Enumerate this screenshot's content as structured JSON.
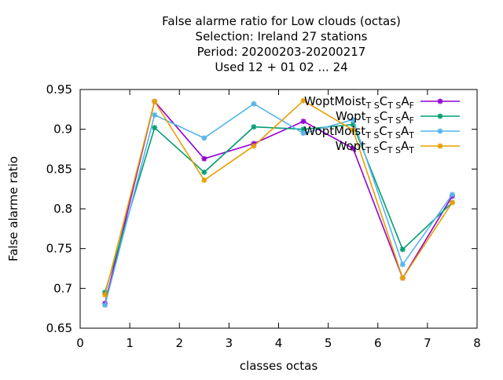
{
  "chart_data": {
    "type": "line",
    "title_lines": [
      "False alarme ratio  for Low clouds (octas)",
      "Selection: Ireland     27 stations",
      "Period: 20200203-20200217",
      "Used  12 + 01 02 ... 24"
    ],
    "xlabel": "classes octas",
    "ylabel": "False alarme ratio",
    "xlim": [
      0,
      8
    ],
    "ylim": [
      0.65,
      0.95
    ],
    "xticks": [
      "0",
      "1",
      "2",
      "3",
      "4",
      "5",
      "6",
      "7",
      "8"
    ],
    "yticks": [
      "0.65",
      "0.7",
      "0.75",
      "0.8",
      "0.85",
      "0.9",
      "0.95"
    ],
    "grid": false,
    "legend_position": "top-right",
    "x": [
      0.5,
      1.5,
      2.5,
      3.5,
      4.5,
      5.5,
      6.5,
      7.5
    ],
    "series": [
      {
        "legend": {
          "main": "WoptMoist",
          "s1": "T S",
          "c": "C",
          "s2": "T S",
          "a": "A",
          "s3": "F"
        },
        "color": "#9400d3",
        "values": [
          0.681,
          0.935,
          0.863,
          0.882,
          0.91,
          0.876,
          0.713,
          0.816
        ]
      },
      {
        "legend": {
          "main": "Wopt",
          "s1": "T S",
          "c": "C",
          "s2": "T S",
          "a": "A",
          "s3": "F"
        },
        "color": "#009e73",
        "values": [
          0.695,
          0.902,
          0.846,
          0.903,
          0.9,
          0.906,
          0.749,
          0.808
        ]
      },
      {
        "legend": {
          "main": "WoptMoist",
          "s1": "T S",
          "c": "C",
          "s2": "T S",
          "a": "A",
          "s3": "T"
        },
        "color": "#56b4e9",
        "values": [
          0.679,
          0.918,
          0.889,
          0.932,
          0.895,
          0.912,
          0.73,
          0.818
        ]
      },
      {
        "legend": {
          "main": "Wopt",
          "s1": "T S",
          "c": "C",
          "s2": "T S",
          "a": "A",
          "s3": "T"
        },
        "color": "#e69f00",
        "values": [
          0.692,
          0.935,
          0.836,
          0.879,
          0.936,
          0.899,
          0.713,
          0.808
        ]
      }
    ]
  }
}
